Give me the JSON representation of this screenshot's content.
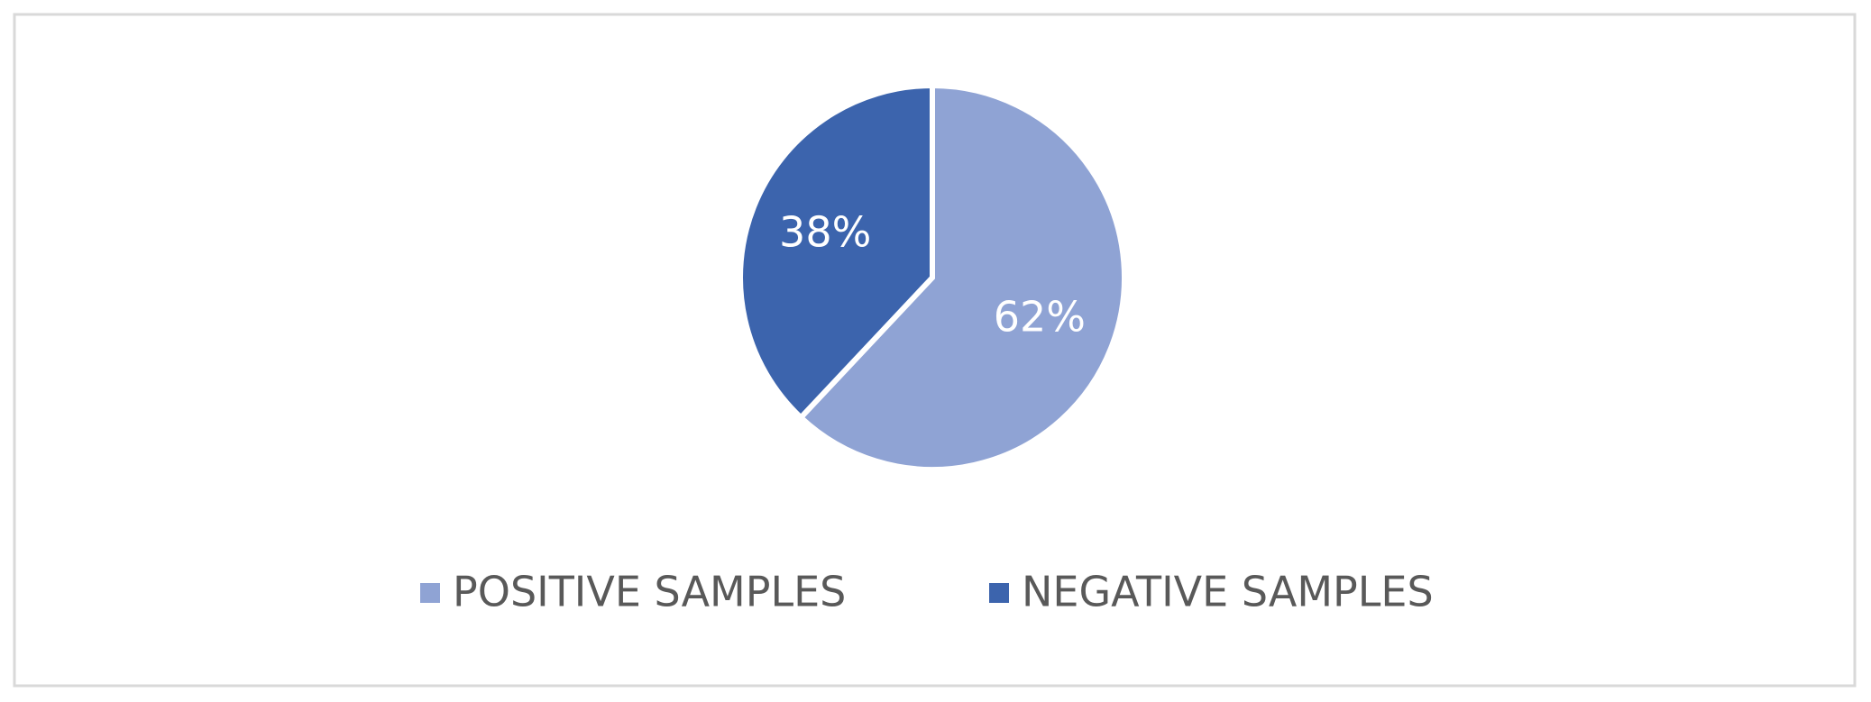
{
  "chart_data": {
    "type": "pie",
    "categories": [
      "POSITIVE SAMPLES",
      "NEGATIVE SAMPLES"
    ],
    "values": [
      62,
      38
    ],
    "value_labels": [
      "62%",
      "38%"
    ],
    "colors": [
      "#8fa3d4",
      "#3c64ad"
    ],
    "legend": "bottom"
  }
}
